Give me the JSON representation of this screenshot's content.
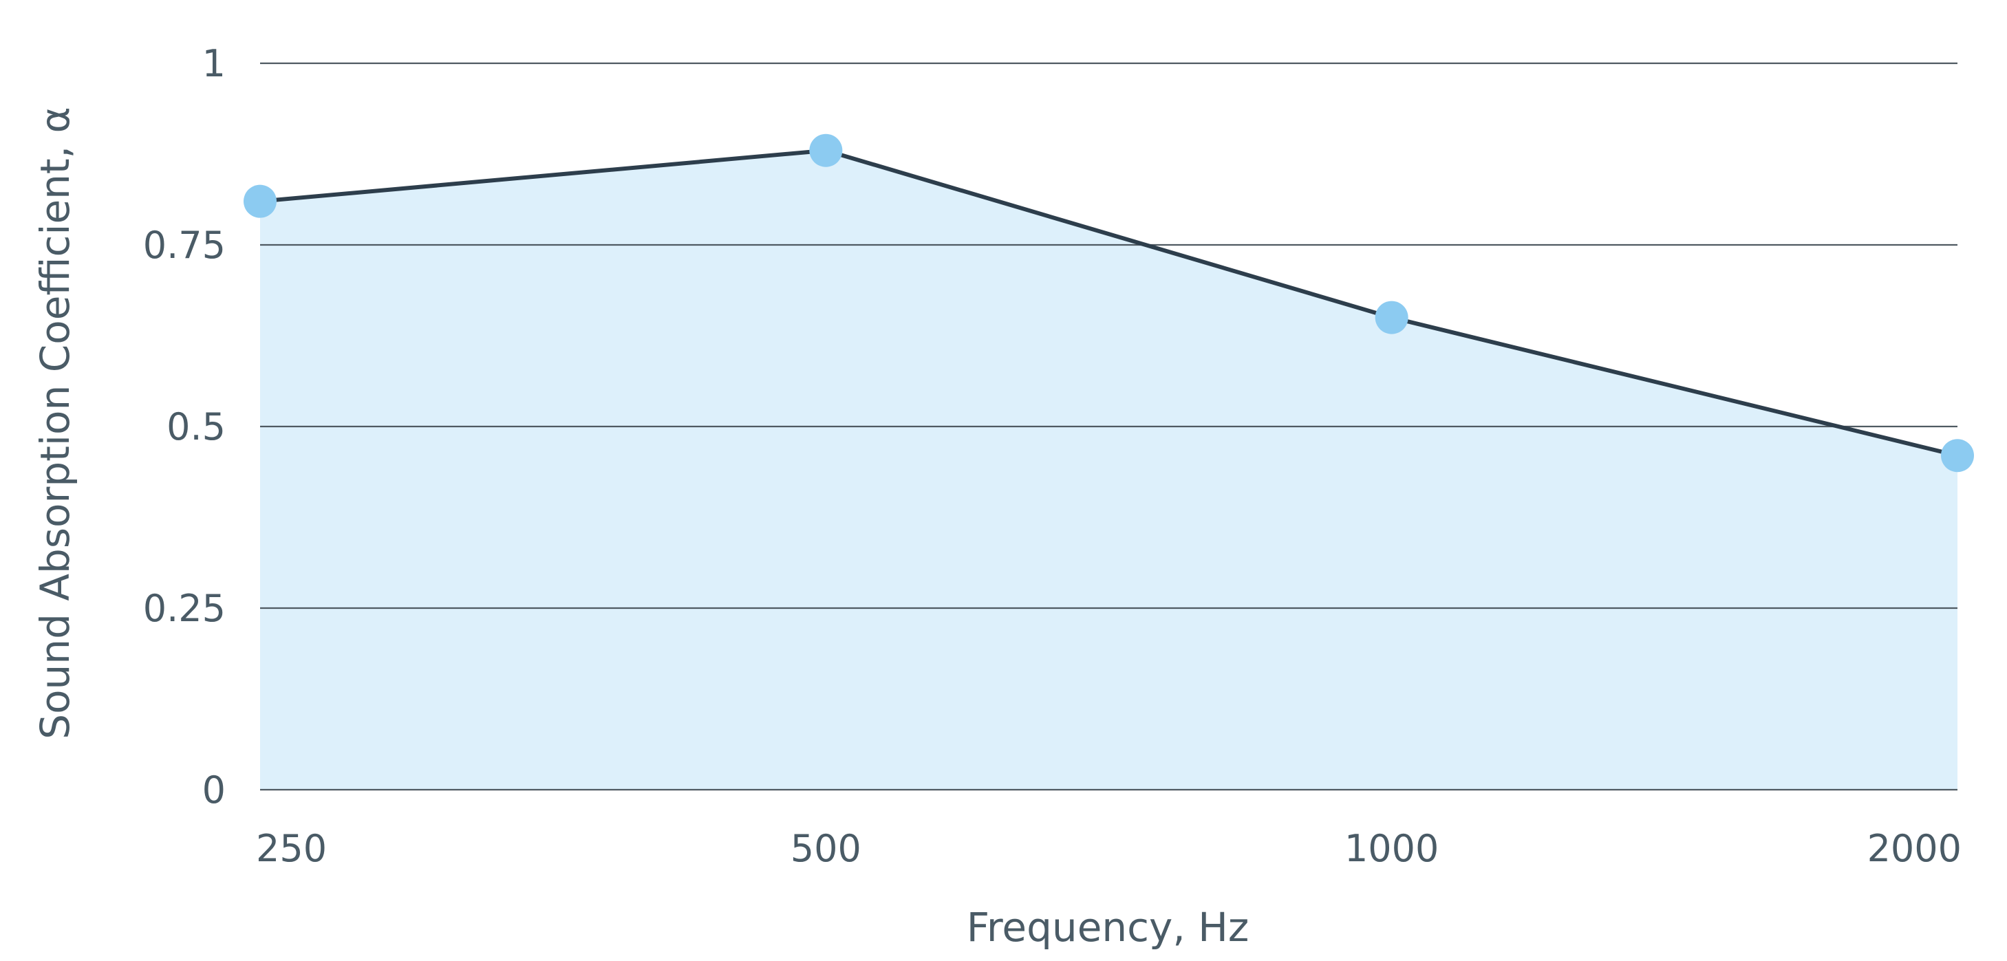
{
  "chart_data": {
    "type": "area",
    "categories": [
      "250",
      "500",
      "1000",
      "2000"
    ],
    "series": [
      {
        "values": [
          0.81,
          0.88,
          0.65,
          0.46
        ]
      }
    ],
    "xlabel": "Frequency, Hz",
    "ylabel": "Sound Absorption Coefficient, α",
    "ylim": [
      0,
      1
    ],
    "yticks": [
      0,
      0.25,
      0.5,
      0.75,
      1
    ],
    "ytick_labels": [
      "0",
      "0.25",
      "0.5",
      "0.75",
      "1"
    ],
    "grid": true,
    "legend": false,
    "colors": {
      "line": "#2d3e4c",
      "marker": "#8ccbf1",
      "fill": "#ddf0fb",
      "grid": "#4f5a62",
      "text": "#4a5b66"
    }
  }
}
